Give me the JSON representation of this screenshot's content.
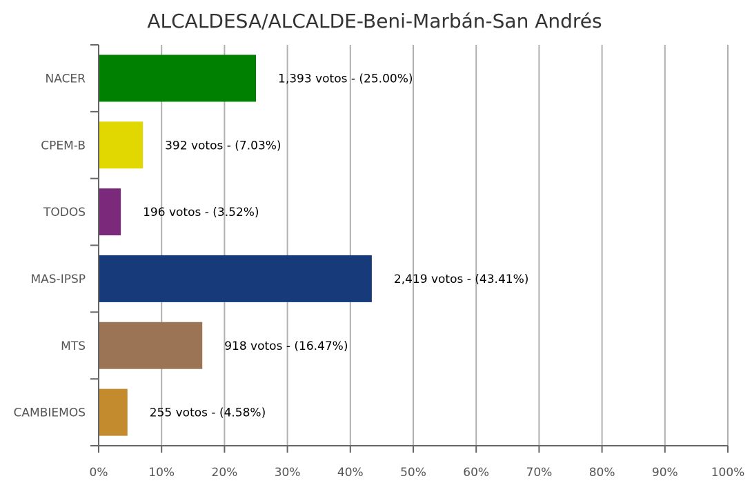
{
  "chart_data": {
    "type": "bar",
    "orientation": "horizontal",
    "title": "ALCALDESA/ALCALDE-Beni-Marbán-San Andrés",
    "categories": [
      "NACER",
      "CPEM-B",
      "TODOS",
      "MAS-IPSP",
      "MTS",
      "CAMBIEMOS"
    ],
    "values": [
      25.0,
      7.03,
      3.52,
      43.41,
      16.47,
      4.58
    ],
    "votes": [
      1393,
      392,
      196,
      2419,
      918,
      255
    ],
    "data_labels": [
      "1,393 votos - (25.00%)",
      "392 votos - (7.03%)",
      "196 votos - (3.52%)",
      "2,419 votos - (43.41%)",
      "918 votos - (16.47%)",
      "255 votos - (4.58%)"
    ],
    "colors": [
      "#008000",
      "#e0d800",
      "#7b2a7b",
      "#173a7a",
      "#9b7355",
      "#c48a2e"
    ],
    "xlim": [
      0,
      100
    ],
    "x_ticks": [
      "0%",
      "10%",
      "20%",
      "30%",
      "40%",
      "50%",
      "60%",
      "70%",
      "80%",
      "90%",
      "100%"
    ],
    "grid": "vertical",
    "xlabel": "",
    "ylabel": ""
  }
}
